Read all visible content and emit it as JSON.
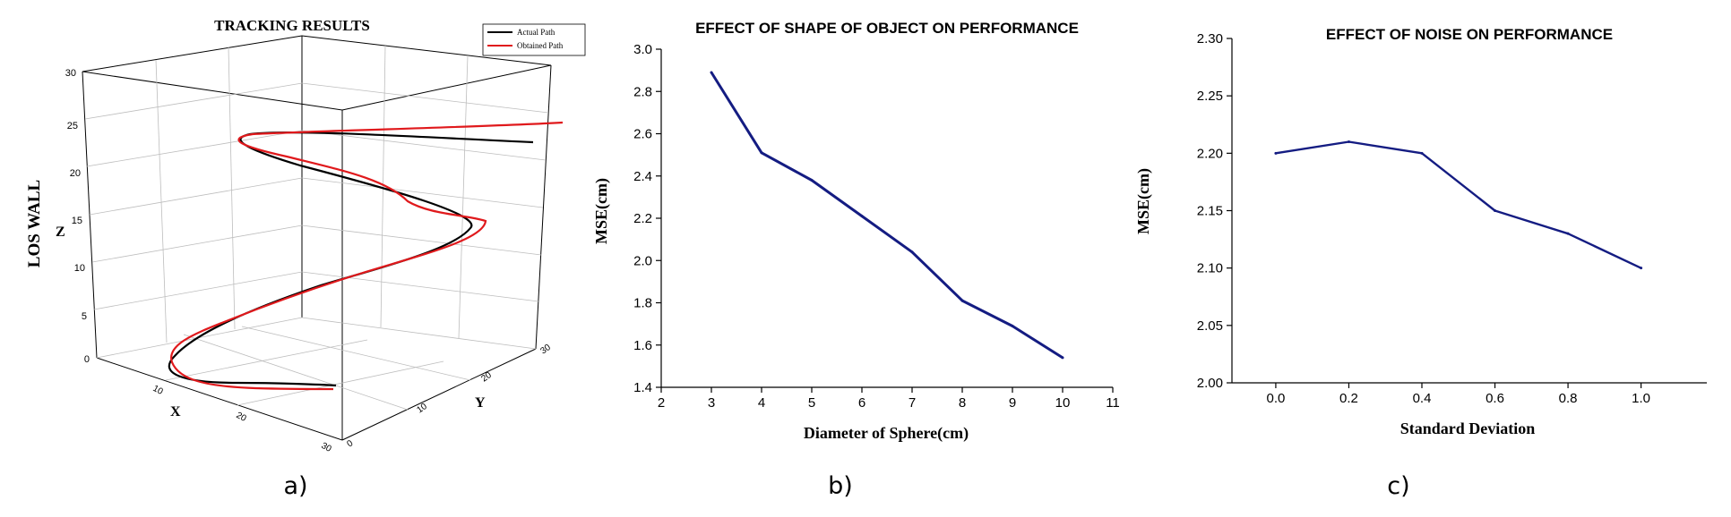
{
  "colors": {
    "actual_path": "#000000",
    "obtained_path": "#e0191c",
    "series_line": "#141c82",
    "axis": "#000000",
    "grid_3d": "#bdbdbd"
  },
  "chart_data": [
    {
      "type": "line3d",
      "title": "TRACKING RESULTS",
      "ylabel_side": "LOS WALL",
      "axes": {
        "x": "X",
        "y": "Y",
        "z": "Z"
      },
      "z_ticks": [
        "0",
        "5",
        "10",
        "15",
        "20",
        "25",
        "30"
      ],
      "x_ticks": [
        "10",
        "20",
        "30"
      ],
      "y_ticks": [
        "0",
        "10",
        "20",
        "30"
      ],
      "legend": [
        {
          "label": "Actual Path",
          "color": "#000000"
        },
        {
          "label": "Obtained Path",
          "color": "#e0191c"
        }
      ],
      "panel_label": "a)"
    },
    {
      "type": "line",
      "title": "EFFECT OF SHAPE OF OBJECT ON PERFORMANCE",
      "xlabel": "Diameter of Sphere(cm)",
      "ylabel": "MSE(cm)",
      "xlim": [
        2,
        11
      ],
      "ylim": [
        1.4,
        3.0
      ],
      "x_ticks": [
        "2",
        "3",
        "4",
        "5",
        "6",
        "7",
        "8",
        "9",
        "10",
        "11"
      ],
      "y_ticks": [
        "1.4",
        "1.6",
        "1.8",
        "2.0",
        "2.2",
        "2.4",
        "2.6",
        "2.8",
        "3.0"
      ],
      "x": [
        3,
        4,
        5,
        6,
        7,
        8,
        9,
        10
      ],
      "values": [
        2.89,
        2.51,
        2.38,
        2.21,
        2.04,
        1.81,
        1.69,
        1.54
      ],
      "panel_label": "b)"
    },
    {
      "type": "line",
      "title": "EFFECT OF NOISE ON PERFORMANCE",
      "xlabel": "Standard Deviation",
      "ylabel": "MSE(cm)",
      "xlim": [
        -0.12,
        1.18
      ],
      "ylim": [
        2.0,
        2.3
      ],
      "x_ticks": [
        "0.0",
        "0.2",
        "0.4",
        "0.6",
        "0.8",
        "1.0"
      ],
      "y_ticks": [
        "2.00",
        "2.05",
        "2.10",
        "2.15",
        "2.20",
        "2.25",
        "2.30"
      ],
      "x": [
        0.0,
        0.2,
        0.4,
        0.6,
        0.8,
        1.0
      ],
      "values": [
        2.2,
        2.21,
        2.2,
        2.15,
        2.13,
        2.1
      ],
      "panel_label": "c)"
    }
  ]
}
